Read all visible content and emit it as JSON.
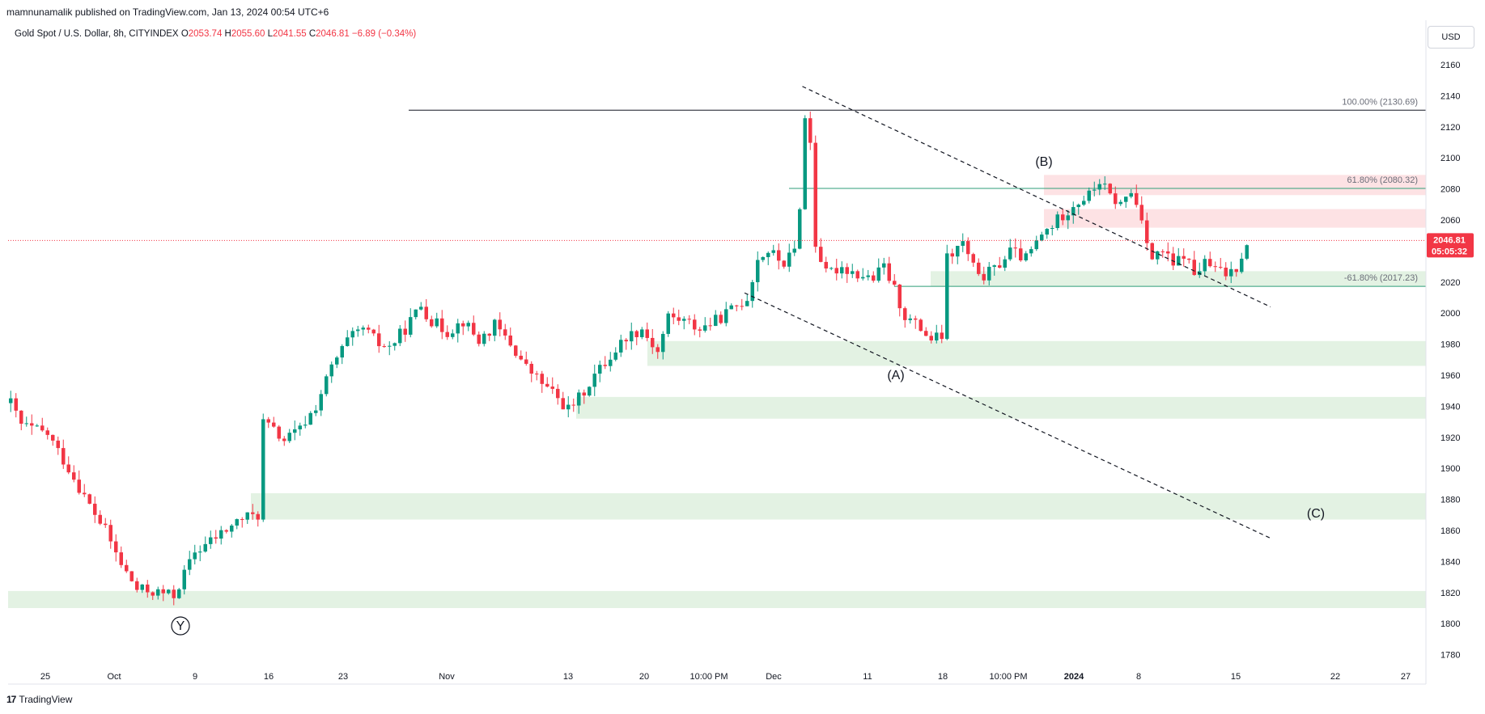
{
  "header": {
    "publisher": "mamnunamalik published on TradingView.com, Jan 13, 2024 00:54 UTC+6"
  },
  "legend": {
    "symbol": "Gold Spot / U.S. Dollar, 8h, CITYINDEX",
    "open_label": "O",
    "open": "2053.74",
    "high_label": "H",
    "high": "2055.60",
    "low_label": "L",
    "low": "2041.55",
    "close_label": "C",
    "close": "2046.81",
    "change": "−6.89 (−0.34%)"
  },
  "currency": "USD",
  "footer": {
    "brand": "TradingView",
    "logo": "17"
  },
  "colors": {
    "up": "#089981",
    "down": "#f23645",
    "demand_zone": "#e3f2e3",
    "supply_zone": "#fde2e4",
    "fib_line_green": "#2e9e78",
    "fib_line_black": "#131722",
    "last_price": "#f23645"
  },
  "chart_data": {
    "type": "candlestick",
    "symbol": "Gold Spot / U.S. Dollar",
    "interval": "8h",
    "ylim": [
      1770,
      2170
    ],
    "y_ticks": [
      1780,
      1800,
      1820,
      1840,
      1860,
      1880,
      1900,
      1920,
      1940,
      1960,
      1980,
      2000,
      2020,
      2040,
      2060,
      2080,
      2100,
      2120,
      2140,
      2160
    ],
    "x_ticks": [
      "25",
      "Oct",
      "9",
      "16",
      "23",
      "Nov",
      "13",
      "20",
      "10:00 PM",
      "Dec",
      "11",
      "18",
      "10:00 PM",
      "2024",
      "8",
      "15",
      "22",
      "27"
    ],
    "last_price": "2046.81",
    "countdown": "05:05:32",
    "path": [
      [
        0,
        1942
      ],
      [
        2,
        1928
      ],
      [
        7,
        1922
      ],
      [
        11,
        1900
      ],
      [
        15,
        1876
      ],
      [
        18,
        1860
      ],
      [
        21,
        1838
      ],
      [
        24,
        1822
      ],
      [
        28,
        1820
      ],
      [
        31,
        1818
      ],
      [
        33,
        1832
      ],
      [
        35,
        1846
      ],
      [
        40,
        1858
      ],
      [
        44,
        1868
      ],
      [
        47,
        1870
      ],
      [
        48,
        1930
      ],
      [
        52,
        1918
      ],
      [
        55,
        1925
      ],
      [
        58,
        1940
      ],
      [
        61,
        1965
      ],
      [
        64,
        1982
      ],
      [
        67,
        1990
      ],
      [
        70,
        1980
      ],
      [
        72,
        1978
      ],
      [
        75,
        1990
      ],
      [
        78,
        2005
      ],
      [
        80,
        1995
      ],
      [
        83,
        1988
      ],
      [
        86,
        1995
      ],
      [
        89,
        1982
      ],
      [
        92,
        1992
      ],
      [
        95,
        1980
      ],
      [
        98,
        1965
      ],
      [
        101,
        1955
      ],
      [
        104,
        1945
      ],
      [
        106,
        1938
      ],
      [
        108,
        1945
      ],
      [
        111,
        1960
      ],
      [
        114,
        1972
      ],
      [
        117,
        1985
      ],
      [
        120,
        1990
      ],
      [
        123,
        1975
      ],
      [
        125,
        1998
      ],
      [
        128,
        1995
      ],
      [
        131,
        1990
      ],
      [
        134,
        1995
      ],
      [
        137,
        2002
      ],
      [
        140,
        2010
      ],
      [
        142,
        2035
      ],
      [
        144,
        2040
      ],
      [
        147,
        2032
      ],
      [
        149,
        2040
      ],
      [
        150,
        2070
      ],
      [
        151,
        2125
      ],
      [
        152,
        2110
      ],
      [
        153,
        2045
      ],
      [
        155,
        2025
      ],
      [
        158,
        2030
      ],
      [
        161,
        2025
      ],
      [
        164,
        2022
      ],
      [
        166,
        2030
      ],
      [
        168,
        2015
      ],
      [
        170,
        1998
      ],
      [
        173,
        1990
      ],
      [
        175,
        1983
      ],
      [
        177,
        1985
      ],
      [
        178,
        2035
      ],
      [
        181,
        2045
      ],
      [
        184,
        2022
      ],
      [
        187,
        2028
      ],
      [
        190,
        2040
      ],
      [
        193,
        2035
      ],
      [
        196,
        2050
      ],
      [
        199,
        2060
      ],
      [
        202,
        2070
      ],
      [
        205,
        2076
      ],
      [
        207,
        2085
      ],
      [
        209,
        2075
      ],
      [
        211,
        2070
      ],
      [
        213,
        2078
      ],
      [
        215,
        2062
      ],
      [
        217,
        2035
      ],
      [
        219,
        2040
      ],
      [
        221,
        2030
      ],
      [
        223,
        2038
      ],
      [
        225,
        2025
      ],
      [
        227,
        2032
      ],
      [
        229,
        2028
      ],
      [
        231,
        2025
      ],
      [
        233,
        2030
      ],
      [
        235,
        2046
      ]
    ],
    "demand_zones": [
      [
        1810,
        1821
      ],
      [
        1867,
        1884
      ],
      [
        1932,
        1946
      ],
      [
        1966,
        1982
      ],
      [
        2017,
        2027
      ]
    ],
    "supply_zones": [
      [
        2076,
        2089
      ],
      [
        2055,
        2067
      ]
    ],
    "fib_levels": [
      {
        "label": "100.00% (2130.69)",
        "price": 2130.69
      },
      {
        "label": "61.80% (2080.32)",
        "price": 2080.32
      },
      {
        "label": "-61.80% (2017.23)",
        "price": 2017.23
      }
    ],
    "wave_labels": [
      "(B)",
      "(A)",
      "(C)",
      "Y"
    ],
    "trendlines": [
      {
        "from": [
          151,
          2146
        ],
        "to": [
          240,
          2004
        ]
      },
      {
        "from": [
          140,
          2013
        ],
        "to": [
          240,
          1855
        ]
      }
    ]
  }
}
